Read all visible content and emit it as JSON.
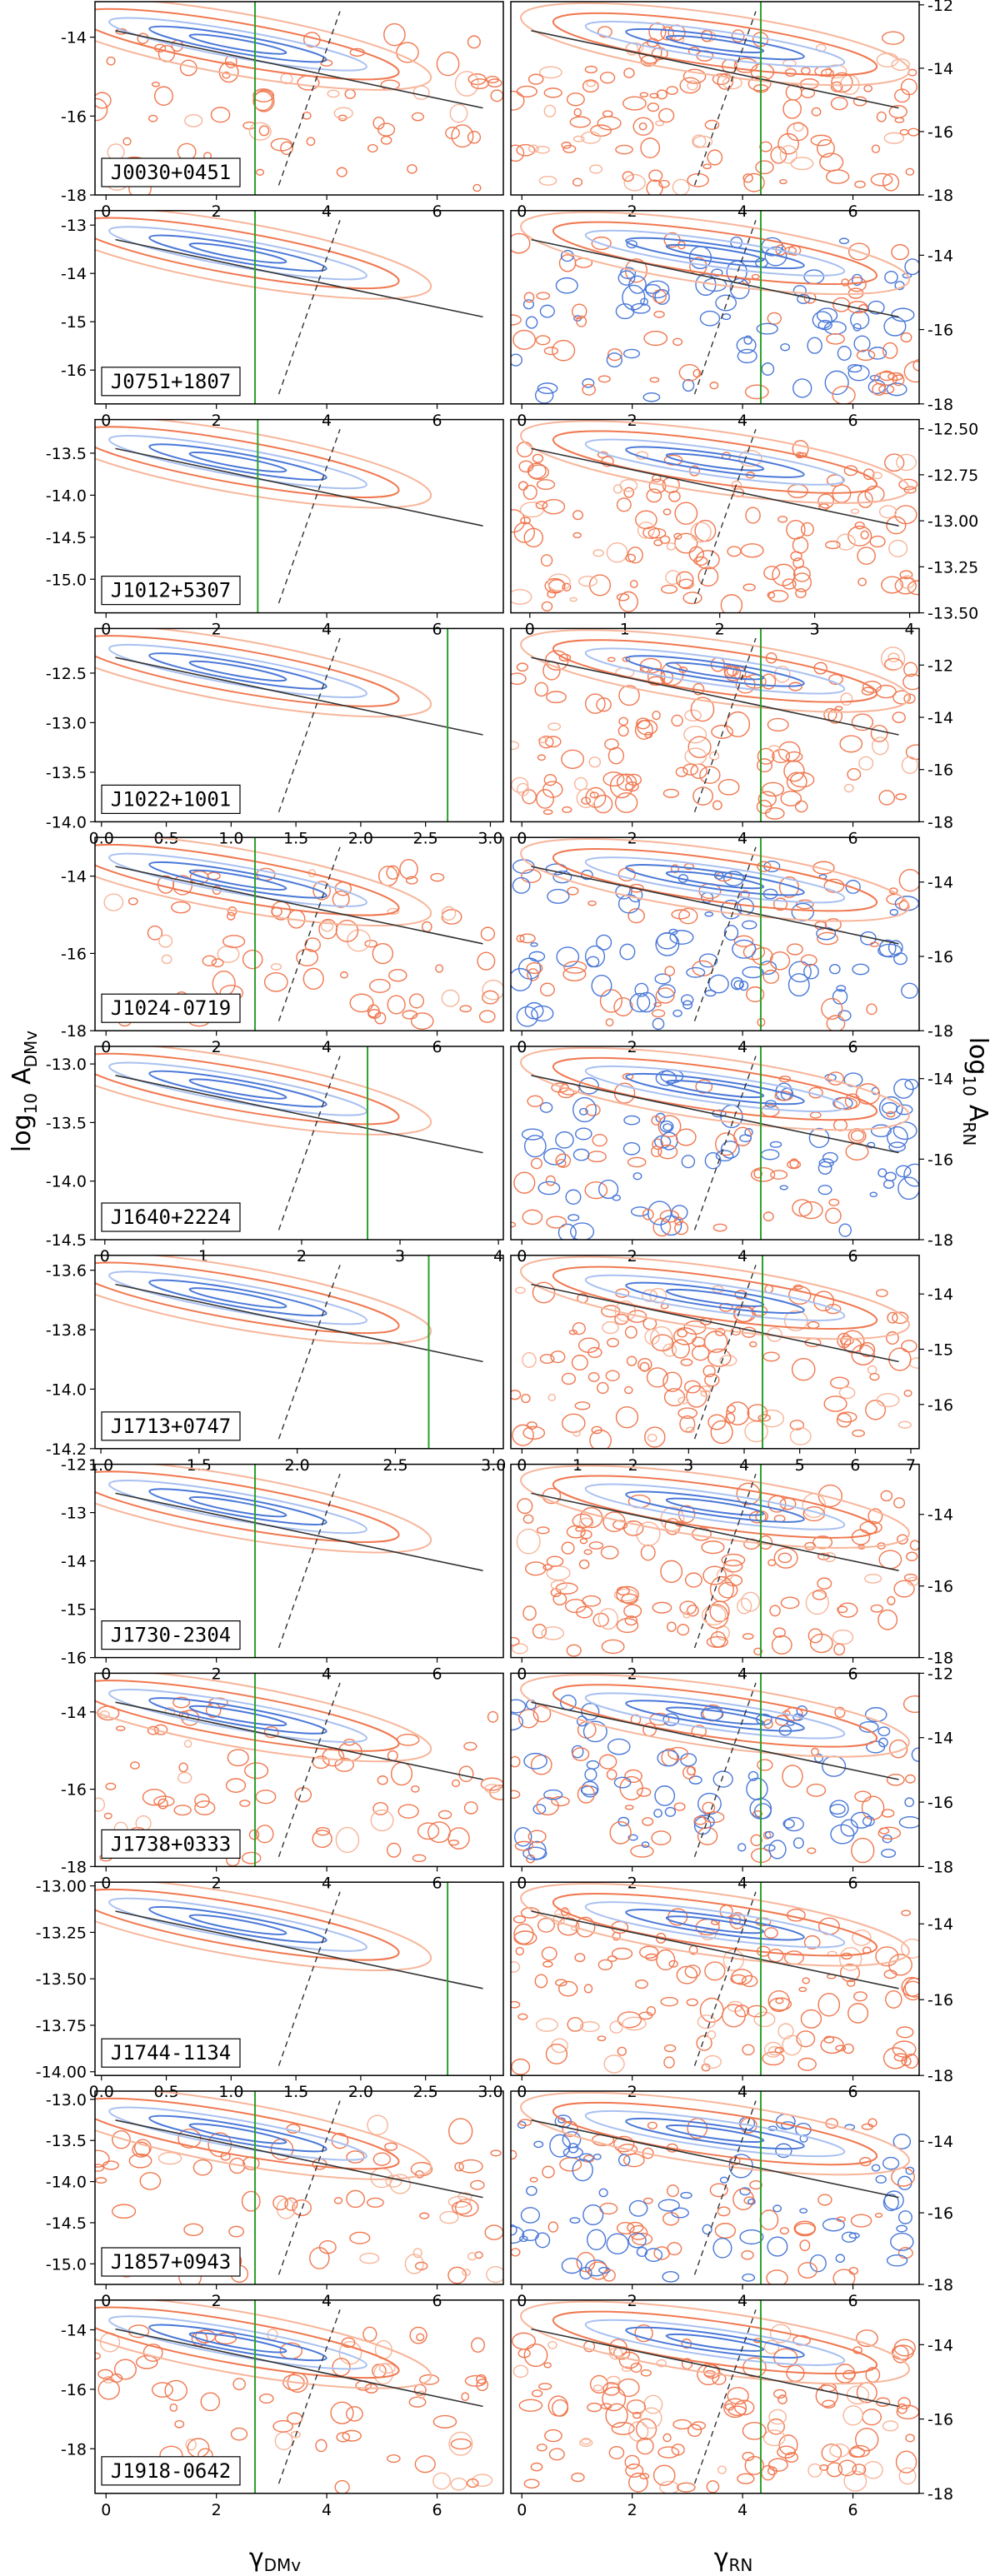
{
  "chart_data": {
    "type": "contour",
    "title": "",
    "xlabel_left": "γ_DMv",
    "xlabel_right": "γ_RN",
    "ylabel_left": "log10 A_DMv",
    "ylabel_right": "log10 A_RN",
    "xlabel_left_parts": {
      "base": "γ",
      "sub": "DMv"
    },
    "xlabel_right_parts": {
      "base": "γ",
      "sub": "RN"
    },
    "ylabel_left_parts": {
      "base": "log",
      "base_sub": "10",
      "sym": "A",
      "sub": "DMv"
    },
    "ylabel_right_parts": {
      "base": "log",
      "base_sub": "10",
      "sym": "A",
      "sub": "RN"
    },
    "colors": {
      "orange": "#f07850",
      "light_orange": "#f7b59a",
      "blue": "#4a78d8",
      "light_blue": "#a9c0f0",
      "green": "#2ca02c",
      "dark": "#333333"
    },
    "panels": [
      {
        "pulsar": "J0030+0451",
        "left": {
          "xlim": [
            -0.2,
            7.2
          ],
          "ylim": [
            -18,
            -13.1
          ],
          "xticks": [
            "0",
            "2",
            "4",
            "6"
          ],
          "xtickv": [
            0,
            2,
            4,
            6
          ],
          "yticks": [
            "-14",
            "-16",
            "-18"
          ],
          "ytickv": [
            -14,
            -16,
            -18
          ],
          "green": 2.7
        },
        "right": {
          "xlim": [
            -0.2,
            7.2
          ],
          "ylim": [
            -18,
            -11.9
          ],
          "xticks": [
            "0",
            "2",
            "4",
            "6"
          ],
          "xtickv": [
            0,
            2,
            4,
            6
          ],
          "yticks": [
            "-12",
            "-14",
            "-16",
            "-18"
          ],
          "ytickv": [
            -12,
            -14,
            -16,
            -18
          ],
          "green": 4.33
        }
      },
      {
        "pulsar": "J0751+1807",
        "left": {
          "xlim": [
            -0.2,
            7.2
          ],
          "ylim": [
            -16.7,
            -12.7
          ],
          "xticks": [
            "0",
            "2",
            "4",
            "6"
          ],
          "xtickv": [
            0,
            2,
            4,
            6
          ],
          "yticks": [
            "-13",
            "-14",
            "-15",
            "-16"
          ],
          "ytickv": [
            -13,
            -14,
            -15,
            -16
          ],
          "green": 2.7
        },
        "right": {
          "xlim": [
            -0.2,
            7.2
          ],
          "ylim": [
            -18,
            -12.8
          ],
          "xticks": [
            "0",
            "2",
            "4",
            "6"
          ],
          "xtickv": [
            0,
            2,
            4,
            6
          ],
          "yticks": [
            "-14",
            "-16",
            "-18"
          ],
          "ytickv": [
            -14,
            -16,
            -18
          ],
          "green": 4.33
        }
      },
      {
        "pulsar": "J1012+5307",
        "left": {
          "xlim": [
            -0.2,
            7.2
          ],
          "ylim": [
            -15.4,
            -13.1
          ],
          "xticks": [
            "0",
            "2",
            "4",
            "6"
          ],
          "xtickv": [
            0,
            2,
            4,
            6
          ],
          "yticks": [
            "-13.5",
            "-14.0",
            "-14.5",
            "-15.0"
          ],
          "ytickv": [
            -13.5,
            -14,
            -14.5,
            -15
          ],
          "green": 2.75
        },
        "right": {
          "xlim": [
            -0.2,
            4.1
          ],
          "ylim": [
            -13.5,
            -12.45
          ],
          "xticks": [
            "0",
            "1",
            "2",
            "3",
            "4"
          ],
          "xtickv": [
            0,
            1,
            2,
            3,
            4
          ],
          "yticks": [
            "-12.50",
            "-12.75",
            "-13.00",
            "-13.25",
            "-13.50"
          ],
          "ytickv": [
            -12.5,
            -12.75,
            -13,
            -13.25,
            -13.5
          ],
          "green": null
        }
      },
      {
        "pulsar": "J1022+1001",
        "left": {
          "xlim": [
            -0.05,
            3.1
          ],
          "ylim": [
            -14,
            -12.05
          ],
          "xticks": [
            "0.0",
            "0.5",
            "1.0",
            "1.5",
            "2.0",
            "2.5",
            "3.0"
          ],
          "xtickv": [
            0,
            0.5,
            1,
            1.5,
            2,
            2.5,
            3
          ],
          "yticks": [
            "-12.5",
            "-13.0",
            "-13.5",
            "-14.0"
          ],
          "ytickv": [
            -12.5,
            -13,
            -13.5,
            -14
          ],
          "green": 2.67
        },
        "right": {
          "xlim": [
            -0.2,
            7.2
          ],
          "ylim": [
            -18,
            -10.6
          ],
          "xticks": [
            "0",
            "2",
            "4",
            "6"
          ],
          "xtickv": [
            0,
            2,
            4,
            6
          ],
          "yticks": [
            "-12",
            "-14",
            "-16",
            "-18"
          ],
          "ytickv": [
            -12,
            -14,
            -16,
            -18
          ],
          "green": 4.33
        }
      },
      {
        "pulsar": "J1024-0719",
        "left": {
          "xlim": [
            -0.2,
            7.2
          ],
          "ylim": [
            -18,
            -13
          ],
          "xticks": [
            "0",
            "2",
            "4",
            "6"
          ],
          "xtickv": [
            0,
            2,
            4,
            6
          ],
          "yticks": [
            "-14",
            "-16",
            "-18"
          ],
          "ytickv": [
            -14,
            -16,
            -18
          ],
          "green": 2.7
        },
        "right": {
          "xlim": [
            -0.2,
            7.2
          ],
          "ylim": [
            -18,
            -12.8
          ],
          "xticks": [
            "0",
            "2",
            "4",
            "6"
          ],
          "xtickv": [
            0,
            2,
            4,
            6
          ],
          "yticks": [
            "-14",
            "-16",
            "-18"
          ],
          "ytickv": [
            -14,
            -16,
            -18
          ],
          "green": 4.33
        }
      },
      {
        "pulsar": "J1640+2224",
        "left": {
          "xlim": [
            -0.1,
            4.05
          ],
          "ylim": [
            -14.5,
            -12.85
          ],
          "xticks": [
            "0",
            "1",
            "2",
            "3",
            "4"
          ],
          "xtickv": [
            0,
            1,
            2,
            3,
            4
          ],
          "yticks": [
            "-13.0",
            "-13.5",
            "-14.0",
            "-14.5"
          ],
          "ytickv": [
            -13,
            -13.5,
            -14,
            -14.5
          ],
          "green": 2.67
        },
        "right": {
          "xlim": [
            -0.2,
            7.2
          ],
          "ylim": [
            -18,
            -13.2
          ],
          "xticks": [
            "0",
            "2",
            "4",
            "6"
          ],
          "xtickv": [
            0,
            2,
            4,
            6
          ],
          "yticks": [
            "-14",
            "-16",
            "-18"
          ],
          "ytickv": [
            -14,
            -16,
            -18
          ],
          "green": 4.33
        }
      },
      {
        "pulsar": "J1713+0747",
        "left": {
          "xlim": [
            0.97,
            3.05
          ],
          "ylim": [
            -14.2,
            -13.55
          ],
          "xticks": [
            "1.0",
            "1.5",
            "2.0",
            "2.5",
            "3.0"
          ],
          "xtickv": [
            1,
            1.5,
            2,
            2.5,
            3
          ],
          "yticks": [
            "-13.6",
            "-13.8",
            "-14.0",
            "-14.2"
          ],
          "ytickv": [
            -13.6,
            -13.8,
            -14,
            -14.2
          ],
          "green": 2.67
        },
        "right": {
          "xlim": [
            -0.2,
            7.15
          ],
          "ylim": [
            -16.8,
            -13.3
          ],
          "xticks": [
            "0",
            "1",
            "2",
            "3",
            "4",
            "5",
            "6",
            "7"
          ],
          "xtickv": [
            0,
            1,
            2,
            3,
            4,
            5,
            6,
            7
          ],
          "yticks": [
            "-14",
            "-15",
            "-16"
          ],
          "ytickv": [
            -14,
            -15,
            -16
          ],
          "green": 4.33
        }
      },
      {
        "pulsar": "J1730-2304",
        "left": {
          "xlim": [
            -0.2,
            7.2
          ],
          "ylim": [
            -16,
            -12
          ],
          "xticks": [
            "0",
            "2",
            "4",
            "6"
          ],
          "xtickv": [
            0,
            2,
            4,
            6
          ],
          "yticks": [
            "-12",
            "-13",
            "-14",
            "-15",
            "-16"
          ],
          "ytickv": [
            -12,
            -13,
            -14,
            -15,
            -16
          ],
          "green": 2.7
        },
        "right": {
          "xlim": [
            -0.2,
            7.2
          ],
          "ylim": [
            -18,
            -12.6
          ],
          "xticks": [
            "0",
            "2",
            "4",
            "6"
          ],
          "xtickv": [
            0,
            2,
            4,
            6
          ],
          "yticks": [
            "-14",
            "-16",
            "-18"
          ],
          "ytickv": [
            -14,
            -16,
            -18
          ],
          "green": 4.33
        }
      },
      {
        "pulsar": "J1738+0333",
        "left": {
          "xlim": [
            -0.2,
            7.2
          ],
          "ylim": [
            -18,
            -13
          ],
          "xticks": [
            "0",
            "2",
            "4",
            "6"
          ],
          "xtickv": [
            0,
            2,
            4,
            6
          ],
          "yticks": [
            "-14",
            "-16",
            "-18"
          ],
          "ytickv": [
            -14,
            -16,
            -18
          ],
          "green": 2.7
        },
        "right": {
          "xlim": [
            -0.2,
            7.2
          ],
          "ylim": [
            -18,
            -12
          ],
          "xticks": [
            "0",
            "2",
            "4",
            "6"
          ],
          "xtickv": [
            0,
            2,
            4,
            6
          ],
          "yticks": [
            "-12",
            "-14",
            "-16",
            "-18"
          ],
          "ytickv": [
            -12,
            -14,
            -16,
            -18
          ],
          "green": 4.33
        }
      },
      {
        "pulsar": "J1744-1134",
        "left": {
          "xlim": [
            -0.05,
            3.1
          ],
          "ylim": [
            -14.02,
            -12.98
          ],
          "xticks": [
            "0.0",
            "0.5",
            "1.0",
            "1.5",
            "2.0",
            "2.5",
            "3.0"
          ],
          "xtickv": [
            0,
            0.5,
            1,
            1.5,
            2,
            2.5,
            3
          ],
          "yticks": [
            "-13.00",
            "-13.25",
            "-13.50",
            "-13.75",
            "-14.00"
          ],
          "ytickv": [
            -13,
            -13.25,
            -13.5,
            -13.75,
            -14
          ],
          "green": 2.67
        },
        "right": {
          "xlim": [
            -0.2,
            7.2
          ],
          "ylim": [
            -18,
            -12.9
          ],
          "xticks": [
            "0",
            "2",
            "4",
            "6"
          ],
          "xtickv": [
            0,
            2,
            4,
            6
          ],
          "yticks": [
            "-14",
            "-16",
            "-18"
          ],
          "ytickv": [
            -14,
            -16,
            -18
          ],
          "green": 4.33
        }
      },
      {
        "pulsar": "J1857+0943",
        "left": {
          "xlim": [
            -0.2,
            7.2
          ],
          "ylim": [
            -15.25,
            -12.9
          ],
          "xticks": [
            "0",
            "2",
            "4",
            "6"
          ],
          "xtickv": [
            0,
            2,
            4,
            6
          ],
          "yticks": [
            "-13.0",
            "-13.5",
            "-14.0",
            "-14.5",
            "-15.0"
          ],
          "ytickv": [
            -13,
            -13.5,
            -14,
            -14.5,
            -15
          ],
          "green": 2.7
        },
        "right": {
          "xlim": [
            -0.2,
            7.2
          ],
          "ylim": [
            -18,
            -12.6
          ],
          "xticks": [
            "0",
            "2",
            "4",
            "6"
          ],
          "xtickv": [
            0,
            2,
            4,
            6
          ],
          "yticks": [
            "-14",
            "-16",
            "-18"
          ],
          "ytickv": [
            -14,
            -16,
            -18
          ],
          "green": 4.33
        }
      },
      {
        "pulsar": "J1918-0642",
        "left": {
          "xlim": [
            -0.2,
            7.2
          ],
          "ylim": [
            -19.5,
            -13
          ],
          "xticks": [
            "0",
            "2",
            "4",
            "6"
          ],
          "xtickv": [
            0,
            2,
            4,
            6
          ],
          "yticks": [
            "-14",
            "-16",
            "-18"
          ],
          "ytickv": [
            -14,
            -16,
            -18
          ],
          "green": 2.7
        },
        "right": {
          "xlim": [
            -0.2,
            7.2
          ],
          "ylim": [
            -18,
            -12.8
          ],
          "xticks": [
            "0",
            "2",
            "4",
            "6"
          ],
          "xtickv": [
            0,
            2,
            4,
            6
          ],
          "yticks": [
            "-14",
            "-16",
            "-18"
          ],
          "ytickv": [
            -14,
            -16,
            -18
          ],
          "green": 4.33
        }
      }
    ]
  }
}
